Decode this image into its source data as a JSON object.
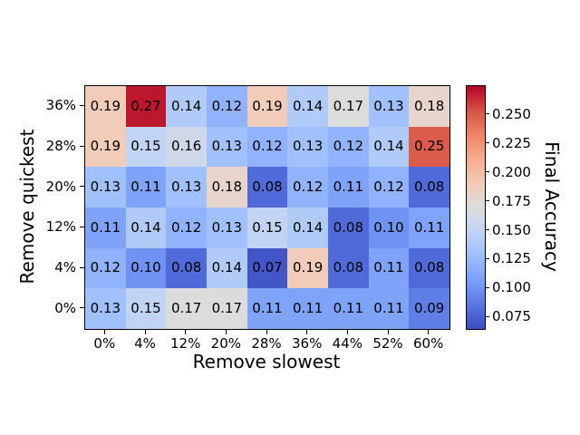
{
  "figure": {
    "background_color": "#ffffff",
    "text_color": "#000000"
  },
  "chart_data": {
    "type": "heatmap",
    "title": "",
    "xlabel": "Remove slowest",
    "ylabel": "Remove quickest",
    "x_categories": [
      "0%",
      "4%",
      "12%",
      "20%",
      "28%",
      "36%",
      "44%",
      "52%",
      "60%"
    ],
    "y_categories": [
      "36%",
      "28%",
      "20%",
      "12%",
      "4%",
      "0%"
    ],
    "values": [
      [
        0.19,
        0.27,
        0.14,
        0.12,
        0.19,
        0.14,
        0.17,
        0.13,
        0.18
      ],
      [
        0.19,
        0.15,
        0.16,
        0.13,
        0.12,
        0.13,
        0.12,
        0.14,
        0.25
      ],
      [
        0.13,
        0.11,
        0.13,
        0.18,
        0.08,
        0.12,
        0.11,
        0.12,
        0.08
      ],
      [
        0.11,
        0.14,
        0.12,
        0.13,
        0.15,
        0.14,
        0.08,
        0.1,
        0.11
      ],
      [
        0.12,
        0.1,
        0.08,
        0.14,
        0.07,
        0.19,
        0.08,
        0.11,
        0.08
      ],
      [
        0.13,
        0.15,
        0.17,
        0.17,
        0.11,
        0.11,
        0.11,
        0.11,
        0.09
      ]
    ],
    "cell_value_decimals": 2,
    "cell_text_color": "#000000",
    "grid": false,
    "colorbar": {
      "label": "Final Accuracy",
      "tick_labels": [
        "0.250",
        "0.225",
        "0.200",
        "0.175",
        "0.150",
        "0.125",
        "0.100",
        "0.075"
      ],
      "tick_values": [
        0.25,
        0.225,
        0.2,
        0.175,
        0.15,
        0.125,
        0.1,
        0.075
      ],
      "vmin": 0.065,
      "vmax": 0.275,
      "colormap": "coolwarm",
      "colormap_anchors": [
        "#3b4cc0",
        "#5977e3",
        "#7b9ff9",
        "#9ebeff",
        "#c0d4f5",
        "#dddcdc",
        "#f2cbb7",
        "#f7ac8e",
        "#ee8468",
        "#d65244",
        "#b40426"
      ]
    }
  }
}
